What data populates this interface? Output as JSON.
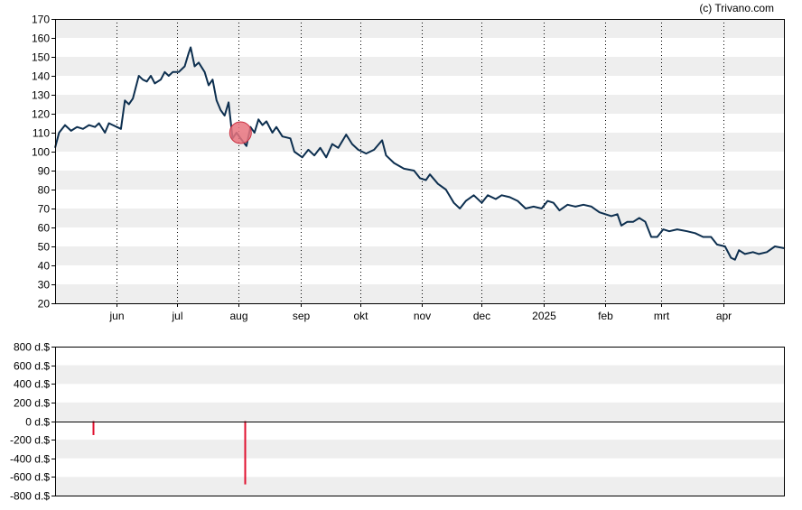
{
  "credit": "(c) Trivano.com",
  "colors": {
    "price_line": "#0d2f4f",
    "band": "#eeeeee",
    "marker_fill": "#e8737e",
    "marker_stroke": "#cc3344",
    "volume_bar": "#e0102f",
    "frame": "#000000",
    "grid_vline": "#000000"
  },
  "chart_data": [
    {
      "type": "line",
      "title": "",
      "xlabel": "",
      "ylabel": "",
      "ylim": [
        20,
        170
      ],
      "y_ticks": [
        "170",
        "160",
        "150",
        "140",
        "130",
        "120",
        "110",
        "100",
        "90",
        "80",
        "70",
        "60",
        "50",
        "40",
        "30",
        "20"
      ],
      "x_ticks": [
        "jun",
        "jul",
        "aug",
        "sep",
        "okt",
        "nov",
        "dec",
        "2025",
        "feb",
        "mrt",
        "apr"
      ],
      "x_range": [
        "2024-05-01",
        "2025-05-02"
      ],
      "grid": "alternating horizontal bands, dotted vertical lines at month ticks",
      "series": [
        {
          "values": [
            [
              "2024-05-01",
              102
            ],
            [
              "2024-05-03",
              110
            ],
            [
              "2024-05-06",
              114
            ],
            [
              "2024-05-09",
              111
            ],
            [
              "2024-05-12",
              113
            ],
            [
              "2024-05-15",
              112
            ],
            [
              "2024-05-18",
              114
            ],
            [
              "2024-05-21",
              113
            ],
            [
              "2024-05-23",
              115
            ],
            [
              "2024-05-26",
              110
            ],
            [
              "2024-05-28",
              115
            ],
            [
              "2024-05-30",
              114
            ],
            [
              "2024-06-01",
              113
            ],
            [
              "2024-06-03",
              112
            ],
            [
              "2024-06-05",
              127
            ],
            [
              "2024-06-07",
              125
            ],
            [
              "2024-06-09",
              128
            ],
            [
              "2024-06-12",
              140
            ],
            [
              "2024-06-14",
              138
            ],
            [
              "2024-06-16",
              137
            ],
            [
              "2024-06-18",
              140
            ],
            [
              "2024-06-20",
              136
            ],
            [
              "2024-06-23",
              138
            ],
            [
              "2024-06-25",
              142
            ],
            [
              "2024-06-27",
              140
            ],
            [
              "2024-06-29",
              142
            ],
            [
              "2024-07-02",
              142
            ],
            [
              "2024-07-05",
              145
            ],
            [
              "2024-07-07",
              152
            ],
            [
              "2024-07-08",
              155
            ],
            [
              "2024-07-10",
              145
            ],
            [
              "2024-07-12",
              147
            ],
            [
              "2024-07-15",
              142
            ],
            [
              "2024-07-17",
              135
            ],
            [
              "2024-07-19",
              138
            ],
            [
              "2024-07-21",
              127
            ],
            [
              "2024-07-23",
              122
            ],
            [
              "2024-07-25",
              119
            ],
            [
              "2024-07-27",
              126
            ],
            [
              "2024-07-29",
              107
            ],
            [
              "2024-07-31",
              110
            ],
            [
              "2024-08-02",
              107
            ],
            [
              "2024-08-05",
              103
            ],
            [
              "2024-08-07",
              113
            ],
            [
              "2024-08-09",
              110
            ],
            [
              "2024-08-11",
              117
            ],
            [
              "2024-08-13",
              114
            ],
            [
              "2024-08-15",
              116
            ],
            [
              "2024-08-18",
              110
            ],
            [
              "2024-08-20",
              113
            ],
            [
              "2024-08-23",
              108
            ],
            [
              "2024-08-27",
              107
            ],
            [
              "2024-08-29",
              100
            ],
            [
              "2024-09-02",
              97
            ],
            [
              "2024-09-05",
              101
            ],
            [
              "2024-09-08",
              98
            ],
            [
              "2024-09-11",
              102
            ],
            [
              "2024-09-14",
              97
            ],
            [
              "2024-09-17",
              104
            ],
            [
              "2024-09-20",
              102
            ],
            [
              "2024-09-24",
              109
            ],
            [
              "2024-09-27",
              104
            ],
            [
              "2024-09-30",
              101
            ],
            [
              "2024-10-04",
              99
            ],
            [
              "2024-10-08",
              101
            ],
            [
              "2024-10-12",
              106
            ],
            [
              "2024-10-14",
              98
            ],
            [
              "2024-10-18",
              94
            ],
            [
              "2024-10-23",
              91
            ],
            [
              "2024-10-28",
              90
            ],
            [
              "2024-10-31",
              86
            ],
            [
              "2024-11-03",
              85
            ],
            [
              "2024-11-05",
              88
            ],
            [
              "2024-11-09",
              83
            ],
            [
              "2024-11-13",
              80
            ],
            [
              "2024-11-17",
              73
            ],
            [
              "2024-11-20",
              70
            ],
            [
              "2024-11-23",
              74
            ],
            [
              "2024-11-27",
              77
            ],
            [
              "2024-12-01",
              73
            ],
            [
              "2024-12-04",
              77
            ],
            [
              "2024-12-08",
              75
            ],
            [
              "2024-12-11",
              77
            ],
            [
              "2024-12-15",
              76
            ],
            [
              "2024-12-19",
              74
            ],
            [
              "2024-12-23",
              70
            ],
            [
              "2024-12-27",
              71
            ],
            [
              "2024-12-31",
              70
            ],
            [
              "2025-01-03",
              74
            ],
            [
              "2025-01-06",
              73
            ],
            [
              "2025-01-09",
              69
            ],
            [
              "2025-01-13",
              72
            ],
            [
              "2025-01-17",
              71
            ],
            [
              "2025-01-21",
              72
            ],
            [
              "2025-01-25",
              71
            ],
            [
              "2025-01-29",
              68
            ],
            [
              "2025-02-01",
              67
            ],
            [
              "2025-02-04",
              66
            ],
            [
              "2025-02-07",
              67
            ],
            [
              "2025-02-09",
              61
            ],
            [
              "2025-02-12",
              63
            ],
            [
              "2025-02-15",
              63
            ],
            [
              "2025-02-18",
              65
            ],
            [
              "2025-02-21",
              63
            ],
            [
              "2025-02-24",
              55
            ],
            [
              "2025-02-27",
              55
            ],
            [
              "2025-03-02",
              59
            ],
            [
              "2025-03-05",
              58
            ],
            [
              "2025-03-09",
              59
            ],
            [
              "2025-03-14",
              58
            ],
            [
              "2025-03-18",
              57
            ],
            [
              "2025-03-22",
              55
            ],
            [
              "2025-03-26",
              55
            ],
            [
              "2025-03-29",
              51
            ],
            [
              "2025-04-02",
              50
            ],
            [
              "2025-04-05",
              44
            ],
            [
              "2025-04-07",
              43
            ],
            [
              "2025-04-09",
              48
            ],
            [
              "2025-04-12",
              46
            ],
            [
              "2025-04-16",
              47
            ],
            [
              "2025-04-19",
              46
            ],
            [
              "2025-04-23",
              47
            ],
            [
              "2025-04-27",
              50
            ],
            [
              "2025-05-02",
              49
            ]
          ]
        }
      ],
      "marker": {
        "x": "2024-08-02",
        "y": 110
      }
    },
    {
      "type": "bar",
      "title": "",
      "xlabel": "",
      "ylabel": "",
      "ylim": [
        -800,
        800
      ],
      "y_ticks": [
        "800 d.$",
        "600 d.$",
        "400 d.$",
        "200 d.$",
        "0 d.$",
        "-200 d.$",
        "-400 d.$",
        "-600 d.$",
        "-800 d.$"
      ],
      "grid": "alternating horizontal bands, solid zero line",
      "values": [
        [
          "2024-05-20",
          -150
        ],
        [
          "2024-08-04",
          -680
        ]
      ]
    }
  ]
}
